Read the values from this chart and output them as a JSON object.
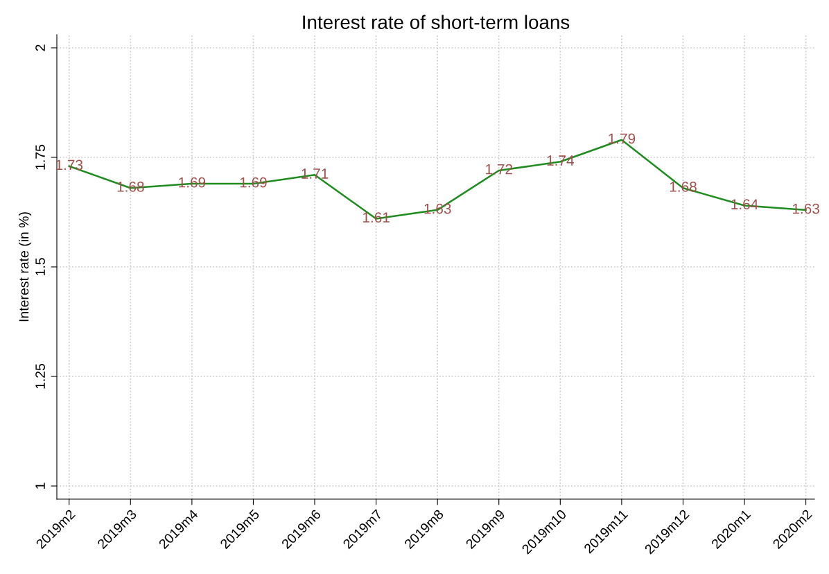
{
  "chart_data": {
    "type": "line",
    "title": "Interest rate of short-term loans",
    "ylabel": "Interest rate (in %)",
    "categories": [
      "2019m2",
      "2019m3",
      "2019m4",
      "2019m5",
      "2019m6",
      "2019m7",
      "2019m8",
      "2019m9",
      "2019m10",
      "2019m11",
      "2019m12",
      "2020m1",
      "2020m2"
    ],
    "series": [
      {
        "color": "#1e8c1e",
        "values": [
          1.73,
          1.68,
          1.69,
          1.69,
          1.71,
          1.61,
          1.63,
          1.72,
          1.74,
          1.79,
          1.68,
          1.64,
          1.63
        ]
      }
    ],
    "ylim": [
      0.97,
      2.03
    ],
    "yticks": [
      1,
      1.25,
      1.5,
      1.75,
      2
    ],
    "data_labels": true,
    "grid": true,
    "marker": "none",
    "line_style": "solid"
  }
}
